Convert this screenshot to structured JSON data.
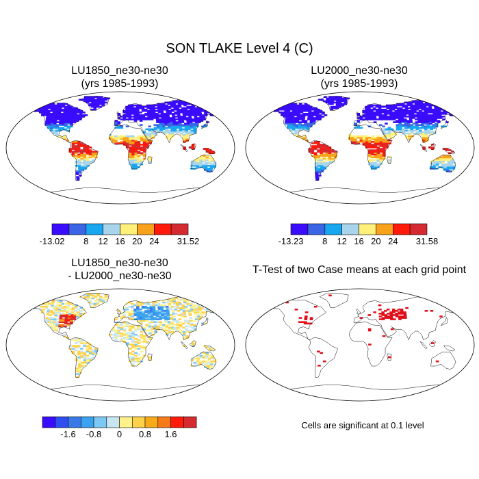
{
  "title": "SON TLAKE Level 4 (C)",
  "panels": [
    {
      "line1": "LU1850_ne30-ne30",
      "line2": "(yrs 1985-1993)"
    },
    {
      "line1": "LU2000_ne30-ne30",
      "line2": "(yrs 1985-1993)"
    },
    {
      "line1": "LU1850_ne30-ne30",
      "line2": "- LU2000_ne30-ne30"
    },
    {
      "line1": "T-Test of two Case means at each grid point",
      "line2": ""
    }
  ],
  "note": "Cells are significant at 0.1 level",
  "colors": {
    "abs_scale": [
      "#3a0cff",
      "#3a66e6",
      "#18a6f0",
      "#a8d4ec",
      "#fff07a",
      "#f7a21a",
      "#ff1a0a",
      "#d42a30"
    ],
    "diff_scale": [
      "#3a0cff",
      "#2f4ef0",
      "#3a7ae8",
      "#3aa2ee",
      "#7cc8f2",
      "#c8e6f2",
      "#fff28a",
      "#ffd24a",
      "#f7aa1a",
      "#f77a18",
      "#ff1a0a",
      "#d42a30"
    ],
    "significant": "#e0101a"
  },
  "chart_data": [
    {
      "type": "heatmap",
      "title": "LU1850_ne30-ne30 (yrs 1985-1993)",
      "projection": "Robinson world map",
      "colorbar": {
        "ticks": [
          "-13.02",
          "8",
          "12",
          "16",
          "20",
          "24",
          "31.52"
        ]
      }
    },
    {
      "type": "heatmap",
      "title": "LU2000_ne30-ne30 (yrs 1985-1993)",
      "projection": "Robinson world map",
      "colorbar": {
        "ticks": [
          "-13.23",
          "8",
          "12",
          "16",
          "20",
          "24",
          "31.58"
        ]
      }
    },
    {
      "type": "heatmap",
      "title": "LU1850_ne30-ne30 - LU2000_ne30-ne30",
      "projection": "Robinson world map",
      "colorbar": {
        "ticks": [
          "-1.6",
          "-0.8",
          "0",
          "0.8",
          "1.6"
        ]
      }
    },
    {
      "type": "heatmap",
      "title": "T-Test of two Case means at each grid point",
      "projection": "Robinson world map",
      "note": "Cells are significant at 0.1 level"
    }
  ]
}
